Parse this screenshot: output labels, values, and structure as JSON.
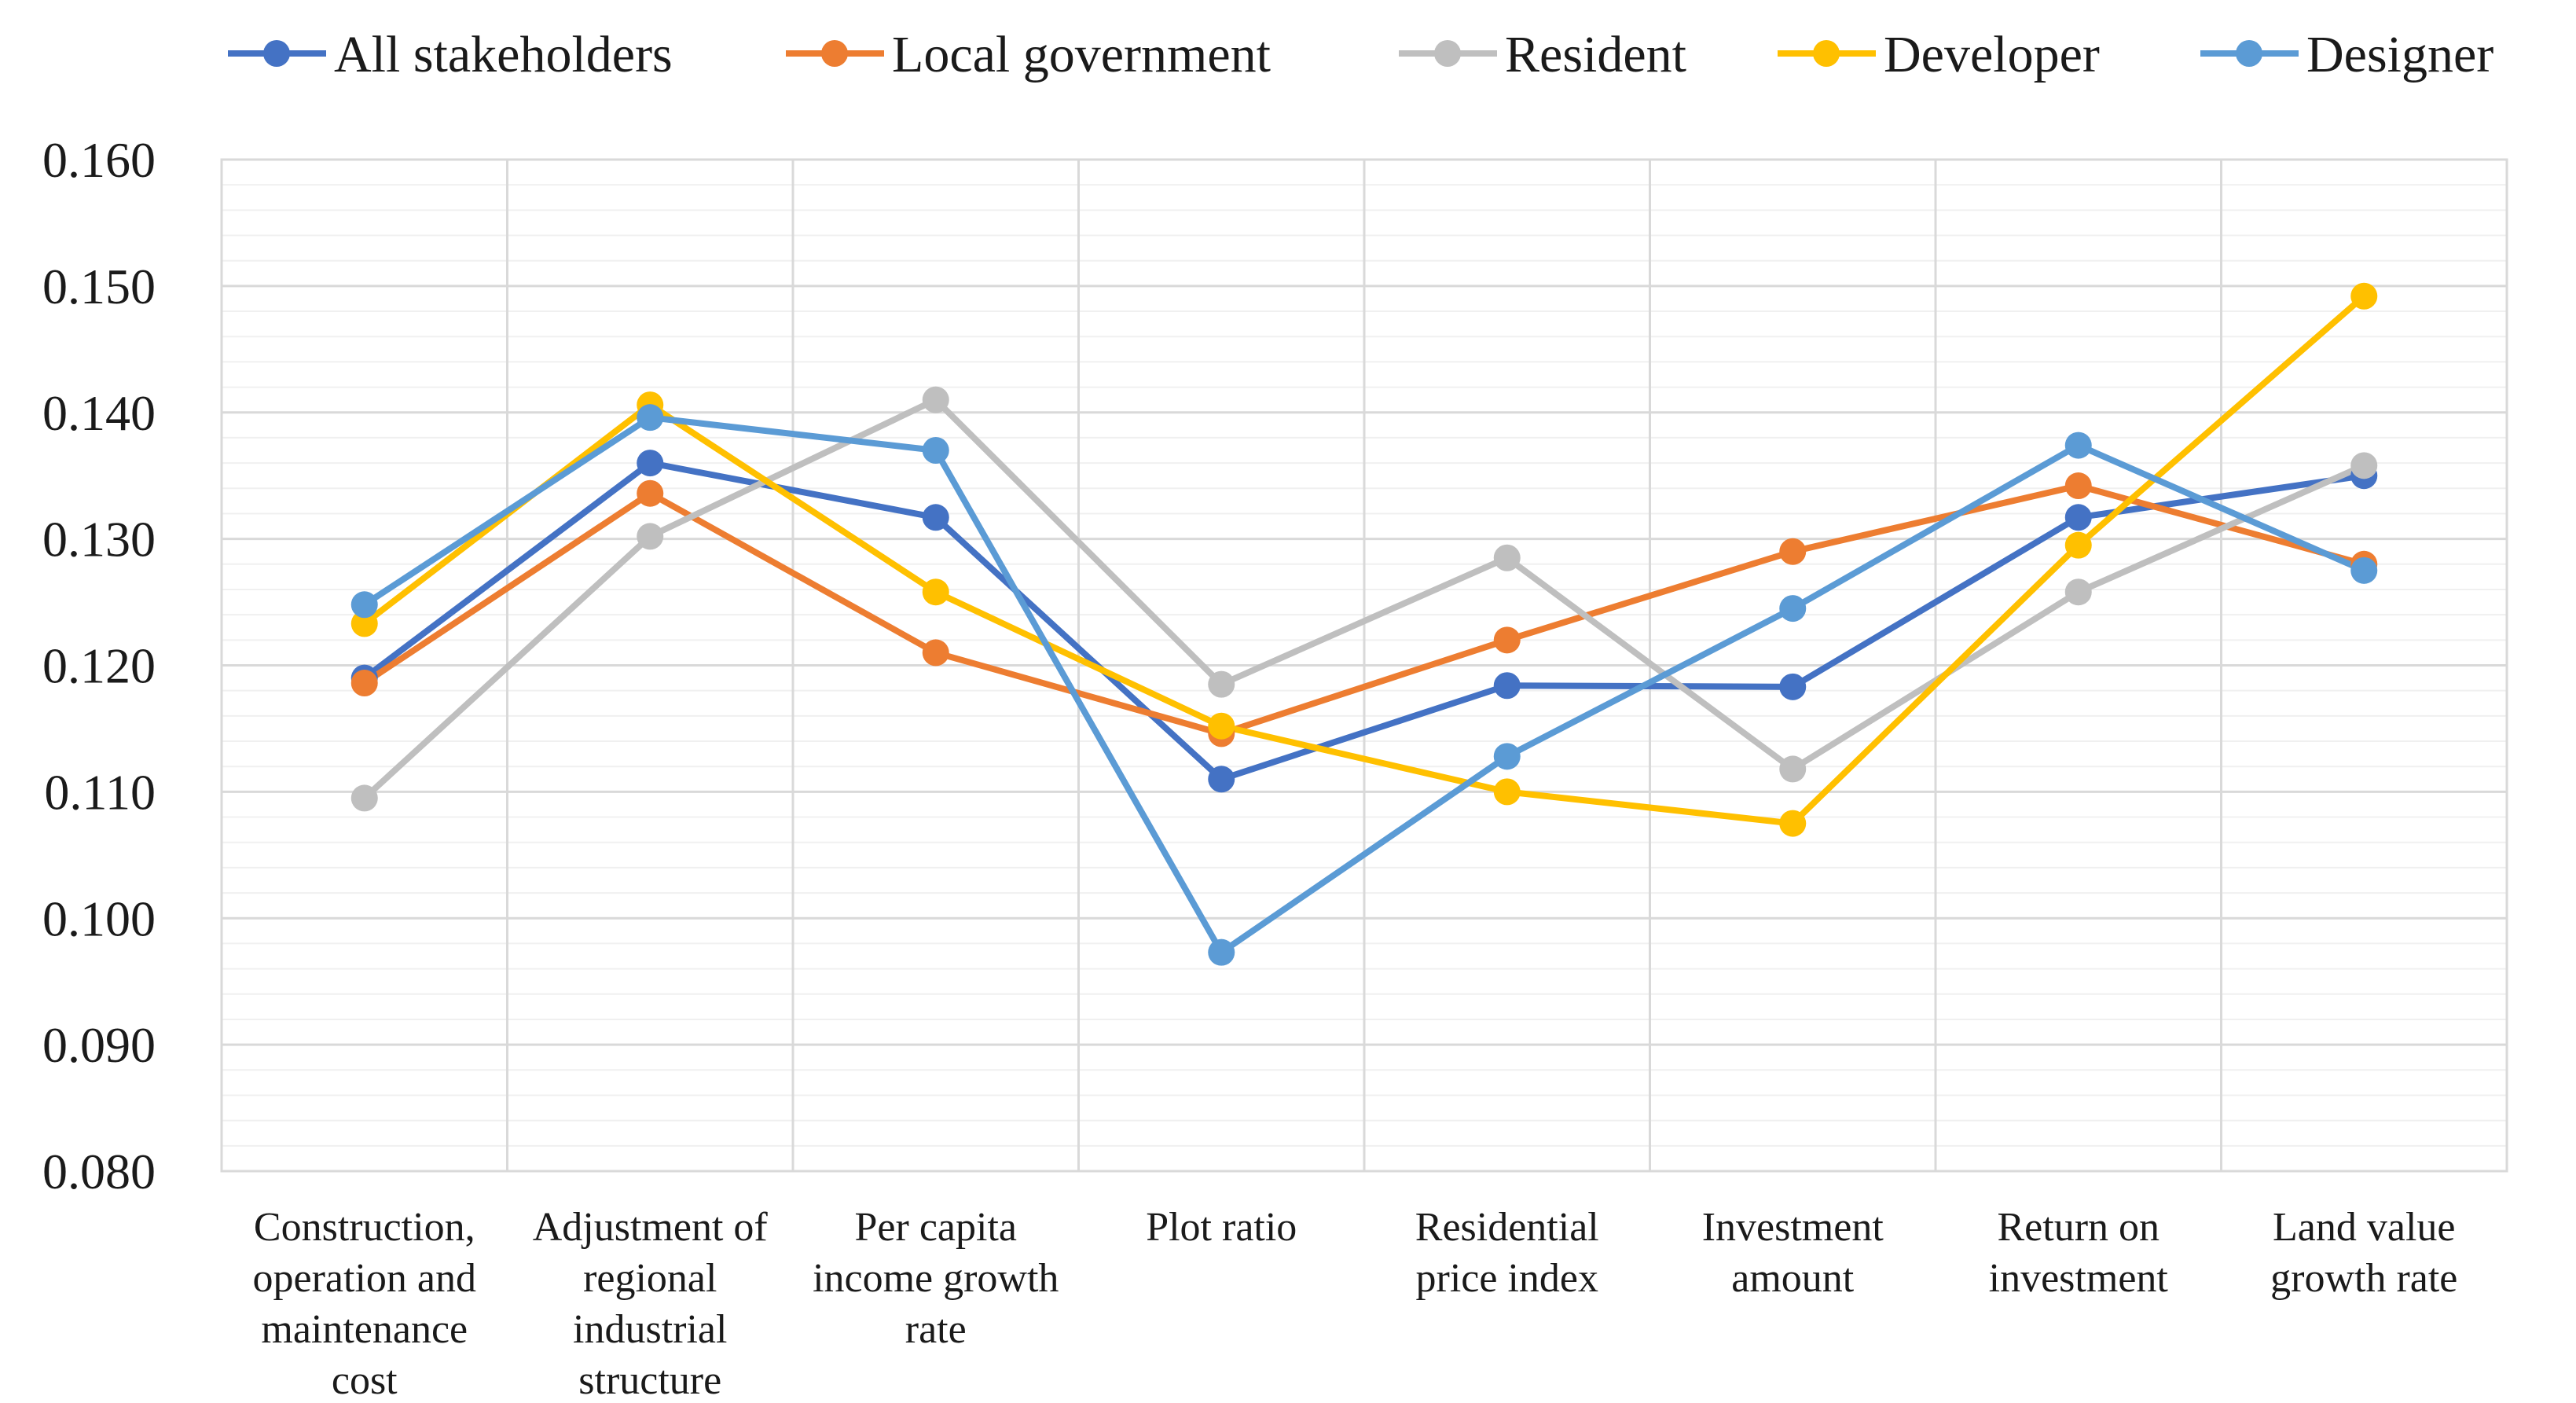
{
  "chart_data": {
    "type": "line",
    "title": "",
    "xlabel": "",
    "ylabel": "",
    "ylim": [
      0.08,
      0.16
    ],
    "yticks": [
      "0.080",
      "0.090",
      "0.100",
      "0.110",
      "0.120",
      "0.130",
      "0.140",
      "0.150",
      "0.160"
    ],
    "ytick_values": [
      0.08,
      0.09,
      0.1,
      0.11,
      0.12,
      0.13,
      0.14,
      0.15,
      0.16
    ],
    "grid": "major and minor horizontal, vertical category separators",
    "legend_position": "top",
    "categories": [
      [
        "Construction,",
        "operation and",
        "maintenance",
        "cost"
      ],
      [
        "Adjustment of",
        "regional",
        "industrial",
        "structure"
      ],
      [
        "Per capita",
        "income growth",
        "rate"
      ],
      [
        "Plot ratio"
      ],
      [
        "Residential",
        "price index"
      ],
      [
        "Investment",
        "amount"
      ],
      [
        "Return on",
        "investment"
      ],
      [
        "Land value",
        "growth rate"
      ]
    ],
    "series": [
      {
        "name": "All stakeholders",
        "color": "#4472C4",
        "values": [
          0.119,
          0.136,
          0.1317,
          0.111,
          0.1184,
          0.1183,
          0.1317,
          0.135
        ]
      },
      {
        "name": "Local government",
        "color": "#ED7D31",
        "values": [
          0.1186,
          0.1336,
          0.121,
          0.1146,
          0.122,
          0.129,
          0.1342,
          0.128
        ]
      },
      {
        "name": "Resident",
        "color": "#BFBFBF",
        "values": [
          0.1095,
          0.1302,
          0.141,
          0.1185,
          0.1285,
          0.1118,
          0.1258,
          0.1358
        ]
      },
      {
        "name": "Developer",
        "color": "#FFC000",
        "values": [
          0.1233,
          0.1406,
          0.1258,
          0.1152,
          0.11,
          0.1075,
          0.1295,
          0.1492
        ]
      },
      {
        "name": "Designer",
        "color": "#5B9BD5",
        "values": [
          0.1248,
          0.1396,
          0.137,
          0.0973,
          0.1128,
          0.1245,
          0.1374,
          0.1275
        ]
      }
    ]
  }
}
